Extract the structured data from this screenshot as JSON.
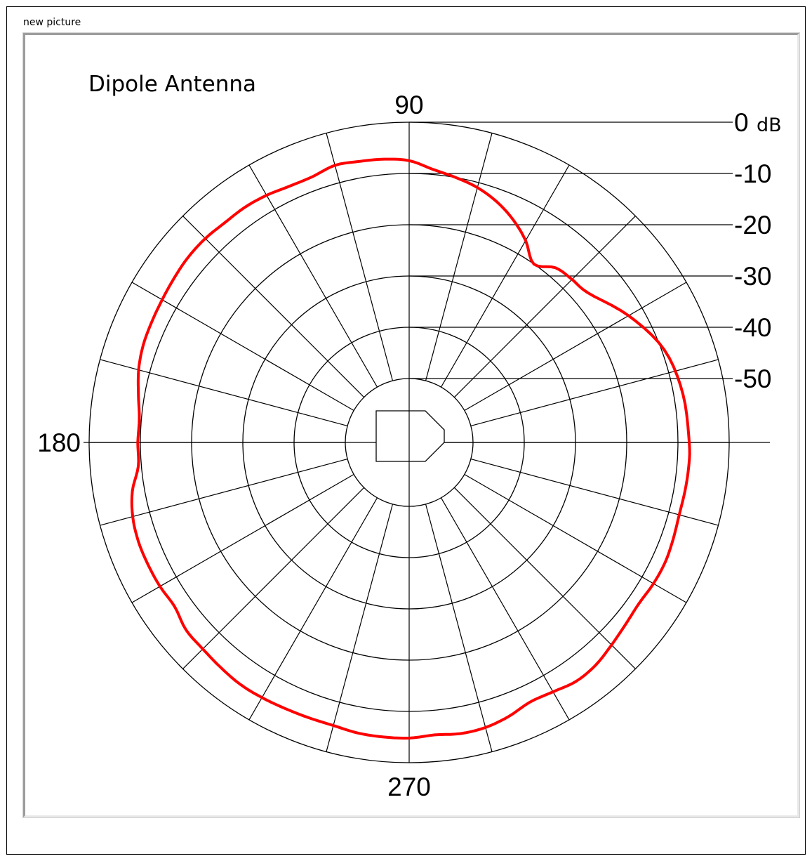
{
  "window": {
    "title": "new picture"
  },
  "chart_data": {
    "type": "polar-line",
    "title": "Dipole Antenna",
    "angle_labels": [
      "90",
      "180",
      "270"
    ],
    "radial_ticks": [
      0,
      -10,
      -20,
      -30,
      -40,
      -50
    ],
    "radial_tick_labels": [
      "0",
      "-10",
      "-20",
      "-30",
      "-40",
      "-50"
    ],
    "radial_unit": "dB",
    "r_range": [
      -50,
      0
    ],
    "angular_grid_step_deg": 15,
    "series": [
      {
        "color": "#ff0000",
        "angles_deg": [
          0,
          10,
          20,
          30,
          40,
          45,
          50,
          55,
          60,
          65,
          70,
          75,
          80,
          85,
          90,
          95,
          100,
          105,
          110,
          115,
          120,
          125,
          130,
          135,
          140,
          145,
          150,
          155,
          160,
          165,
          170,
          175,
          180,
          185,
          190,
          195,
          200,
          205,
          210,
          215,
          220,
          225,
          230,
          235,
          240,
          245,
          250,
          255,
          260,
          265,
          270,
          275,
          280,
          285,
          290,
          295,
          300,
          305,
          310,
          315,
          320,
          325,
          330,
          335,
          340,
          345,
          350,
          355
        ],
        "values_db": [
          -7.8,
          -8.2,
          -9.5,
          -13,
          -17,
          -17.5,
          -18,
          -20,
          -17,
          -14.5,
          -12.5,
          -11,
          -10,
          -9,
          -7.5,
          -7,
          -6.8,
          -6.5,
          -7.3,
          -7.3,
          -6.8,
          -6.5,
          -6.5,
          -6.2,
          -6.2,
          -6.5,
          -6.8,
          -7,
          -7.2,
          -7.8,
          -8.8,
          -9.6,
          -9.5,
          -9.4,
          -7.6,
          -6.6,
          -6.2,
          -6.2,
          -6.3,
          -6.6,
          -5.6,
          -5.5,
          -5.2,
          -4.9,
          -5,
          -5.2,
          -5.3,
          -5.3,
          -4.9,
          -4.8,
          -4.8,
          -5.2,
          -4.8,
          -4.9,
          -5.6,
          -6.6,
          -6.3,
          -5.6,
          -5.8,
          -6.6,
          -7.3,
          -7.7,
          -7.4,
          -7.3,
          -7.6,
          -7.9,
          -7.8,
          -7.7
        ]
      }
    ],
    "legend": "none",
    "grid": true
  }
}
